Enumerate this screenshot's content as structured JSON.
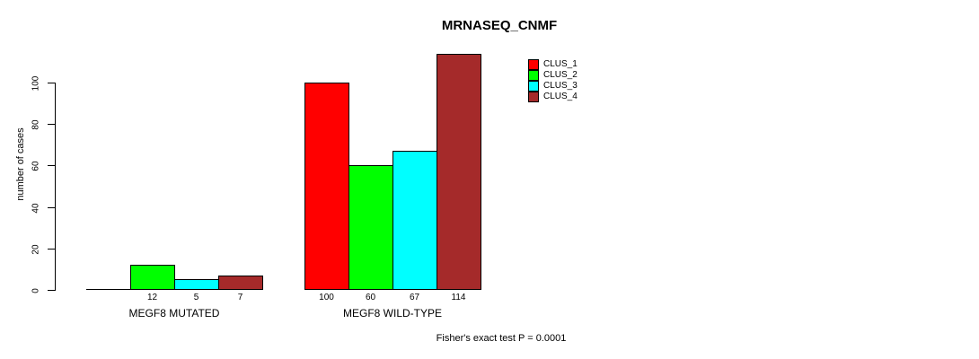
{
  "chart_data": {
    "type": "bar",
    "title": "MRNASEQ_CNMF",
    "ylabel": "number of cases",
    "footer": "Fisher's exact test P = 0.0001",
    "categories": [
      "MEGF8 MUTATED",
      "MEGF8 WILD-TYPE"
    ],
    "series": [
      {
        "name": "CLUS_1",
        "color": "#ff0000",
        "values": [
          0,
          100
        ]
      },
      {
        "name": "CLUS_2",
        "color": "#00ff00",
        "values": [
          12,
          60
        ]
      },
      {
        "name": "CLUS_3",
        "color": "#00ffff",
        "values": [
          5,
          67
        ]
      },
      {
        "name": "CLUS_4",
        "color": "#a52a2a",
        "values": [
          7,
          114
        ]
      }
    ],
    "bar_value_labels": [
      [
        "",
        "12",
        "5",
        "7"
      ],
      [
        "100",
        "60",
        "67",
        "114"
      ]
    ],
    "yticks": [
      0,
      20,
      40,
      60,
      80,
      100
    ],
    "ylim": [
      0,
      114
    ],
    "grid": false,
    "legend_position": "top-right",
    "background_color": "#ffffff",
    "bar_border_color": "#000000"
  }
}
